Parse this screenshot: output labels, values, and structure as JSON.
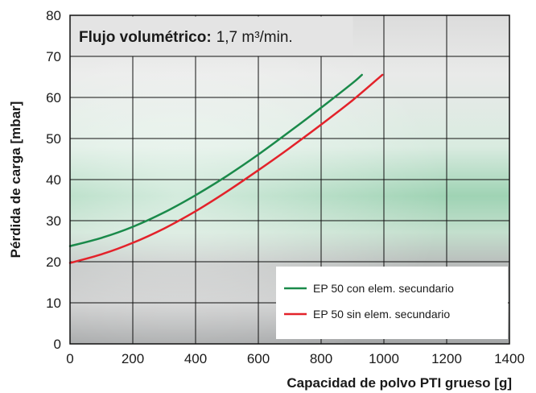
{
  "chart_data": {
    "type": "line",
    "title": "",
    "annotation": {
      "label": "Flujo volumétrico:",
      "value": "1,7 m³/min."
    },
    "xlabel": "Capacidad de polvo PTI grueso [g]",
    "ylabel": "Pérdida de carga [mbar]",
    "xlim": [
      0,
      1400
    ],
    "ylim": [
      0,
      80
    ],
    "xticks": [
      0,
      200,
      400,
      600,
      800,
      1000,
      1200,
      1400
    ],
    "yticks": [
      0,
      10,
      20,
      30,
      40,
      50,
      60,
      70,
      80
    ],
    "grid": true,
    "legend_position": "bottom-right",
    "series": [
      {
        "name": "EP 50 con elem. secundario",
        "color": "#1a8a4a",
        "x": [
          0,
          100,
          200,
          300,
          400,
          500,
          600,
          700,
          800,
          900,
          930
        ],
        "y": [
          23.8,
          25.8,
          28.5,
          32,
          36.2,
          40.9,
          46.1,
          51.7,
          57.5,
          63.5,
          65.5
        ]
      },
      {
        "name": "EP 50 sin elem. secundario",
        "color": "#e3222a",
        "x": [
          0,
          100,
          200,
          300,
          400,
          500,
          600,
          700,
          800,
          900,
          995
        ],
        "y": [
          19.7,
          21.8,
          24.6,
          28.1,
          32.3,
          37.1,
          42.3,
          47.7,
          53.4,
          59.3,
          65.5
        ]
      }
    ]
  }
}
